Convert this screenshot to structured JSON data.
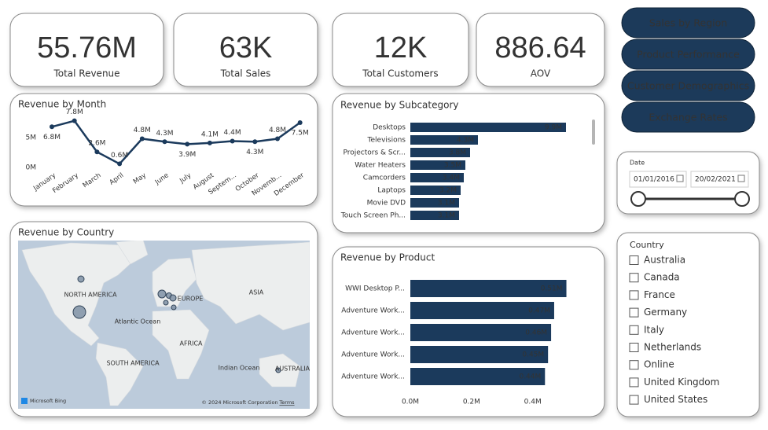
{
  "kpis": [
    {
      "value": "55.76M",
      "label": "Total Revenue"
    },
    {
      "value": "63K",
      "label": "Total Sales"
    },
    {
      "value": "12K",
      "label": "Total Customers"
    },
    {
      "value": "886.64",
      "label": "AOV"
    }
  ],
  "buttons": [
    "Sales by Region",
    "Product Performance",
    "Customer Demographics",
    "Exchange Rates"
  ],
  "date_slicer": {
    "title": "Date",
    "start": "01/01/2016",
    "end": "20/02/2021"
  },
  "country_slicer": {
    "title": "Country",
    "items": [
      "Australia",
      "Canada",
      "France",
      "Germany",
      "Italy",
      "Netherlands",
      "Online",
      "United Kingdom",
      "United States"
    ]
  },
  "map": {
    "title": "Revenue by Country",
    "labels": [
      "NORTH AMERICA",
      "EUROPE",
      "ASIA",
      "Atlantic Ocean",
      "AFRICA",
      "SOUTH AMERICA",
      "Indian Ocean",
      "AUSTRALIA"
    ],
    "logo": "Microsoft Bing",
    "attribution": "© 2024 Microsoft Corporation",
    "terms": "Terms"
  },
  "chart_data": [
    {
      "type": "line",
      "title": "Revenue by Month",
      "categories": [
        "January",
        "February",
        "March",
        "April",
        "May",
        "June",
        "July",
        "August",
        "Septem...",
        "October",
        "Novemb...",
        "December"
      ],
      "values": [
        6.8,
        7.8,
        2.6,
        0.6,
        4.8,
        4.3,
        3.9,
        4.1,
        4.4,
        4.3,
        4.8,
        7.5
      ],
      "value_labels": [
        "6.8M",
        "7.8M",
        "2.6M",
        "0.6M",
        "4.8M",
        "4.3M",
        "3.9M",
        "4.1M",
        "4.4M",
        "4.3M",
        "4.8M",
        "7.5M"
      ],
      "color": "#1b3a5c",
      "ylim": [
        0,
        8.6
      ],
      "yticks": [
        {
          "value": 0,
          "label": "0M"
        },
        {
          "value": 5,
          "label": "5M"
        }
      ]
    },
    {
      "type": "hbar",
      "title": "Revenue by Subcategory",
      "categories": [
        "Desktops",
        "Televisions",
        "Projectors & Scr...",
        "Water Heaters",
        "Camcorders",
        "Laptops",
        "Movie DVD",
        "Touch Screen Ph..."
      ],
      "values": [
        9.9,
        4.3,
        3.8,
        3.5,
        3.4,
        3.2,
        3.1,
        3.1
      ],
      "value_labels": [
        "9.9M",
        "4.3M",
        "3.8M",
        "3.5M",
        "3.4M",
        "3.2M",
        "3.1M",
        "3.1M"
      ],
      "color": "#1b3a5c",
      "xlim": [
        0,
        11
      ]
    },
    {
      "type": "hbar",
      "title": "Revenue by Product",
      "categories": [
        "WWI Desktop P...",
        "Adventure Work...",
        "Adventure Work...",
        "Adventure Work...",
        "Adventure Work..."
      ],
      "values": [
        0.51,
        0.47,
        0.46,
        0.45,
        0.44
      ],
      "value_labels": [
        "0.51M",
        "0.47M",
        "0.46M",
        "0.45M",
        "0.44M"
      ],
      "color": "#1b3a5c",
      "xlim": [
        0,
        0.56
      ],
      "xticks": [
        {
          "value": 0,
          "label": "0.0M"
        },
        {
          "value": 0.2,
          "label": "0.2M"
        },
        {
          "value": 0.4,
          "label": "0.4M"
        }
      ]
    }
  ]
}
